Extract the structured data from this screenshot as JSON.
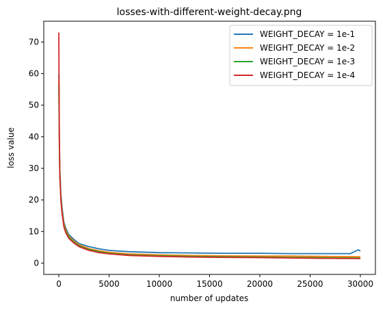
{
  "chart_data": {
    "type": "line",
    "title": "losses-with-different-weight-decay.png",
    "xlabel": "number of updates",
    "ylabel": "loss value",
    "xlim": [
      -1500,
      31500
    ],
    "ylim": [
      -3.6,
      76.6
    ],
    "xticks": [
      0,
      5000,
      10000,
      15000,
      20000,
      25000,
      30000
    ],
    "yticks": [
      0,
      10,
      20,
      30,
      40,
      50,
      60,
      70
    ],
    "grid": false,
    "legend_position": "top-right",
    "series": [
      {
        "name": "WEIGHT_DECAY = 1e-1",
        "color": "#1f77b4",
        "x": [
          0,
          50,
          100,
          200,
          300,
          500,
          700,
          1000,
          1500,
          2000,
          3000,
          4000,
          5000,
          7000,
          10000,
          13000,
          16000,
          20000,
          23000,
          26000,
          29000,
          29800,
          30000
        ],
        "y": [
          60,
          40,
          30,
          22,
          18,
          13,
          11,
          9,
          7.5,
          6.2,
          5.2,
          4.5,
          4.0,
          3.6,
          3.3,
          3.2,
          3.1,
          3.1,
          3.0,
          3.0,
          3.0,
          4.2,
          3.8
        ]
      },
      {
        "name": "WEIGHT_DECAY = 1e-2",
        "color": "#ff7f0e",
        "x": [
          0,
          50,
          100,
          200,
          300,
          500,
          700,
          1000,
          1500,
          2000,
          3000,
          4000,
          5000,
          7000,
          10000,
          13000,
          16000,
          20000,
          23000,
          26000,
          30000
        ],
        "y": [
          58,
          38,
          28,
          21,
          17,
          12.5,
          10.5,
          8.5,
          7,
          5.8,
          4.6,
          3.9,
          3.4,
          2.9,
          2.6,
          2.4,
          2.3,
          2.2,
          2.2,
          2.1,
          2.0
        ]
      },
      {
        "name": "WEIGHT_DECAY = 1e-3",
        "color": "#2ca02c",
        "x": [
          0,
          50,
          100,
          200,
          300,
          500,
          700,
          1000,
          1500,
          2000,
          3000,
          4000,
          5000,
          7000,
          10000,
          13000,
          16000,
          20000,
          23000,
          26000,
          30000
        ],
        "y": [
          57,
          37,
          27,
          20.5,
          16.5,
          12,
          10,
          8.2,
          6.6,
          5.5,
          4.3,
          3.6,
          3.1,
          2.6,
          2.3,
          2.1,
          2.0,
          1.9,
          1.8,
          1.7,
          1.6
        ]
      },
      {
        "name": "WEIGHT_DECAY = 1e-4",
        "color": "#d62728",
        "x": [
          0,
          50,
          100,
          200,
          300,
          500,
          700,
          1000,
          1500,
          2000,
          3000,
          4000,
          5000,
          7000,
          10000,
          13000,
          16000,
          20000,
          23000,
          26000,
          30000
        ],
        "y": [
          73,
          40,
          28,
          20,
          16,
          11.5,
          9.5,
          7.8,
          6.3,
          5.2,
          4.0,
          3.3,
          2.9,
          2.4,
          2.1,
          1.9,
          1.8,
          1.7,
          1.6,
          1.5,
          1.4
        ]
      }
    ]
  }
}
